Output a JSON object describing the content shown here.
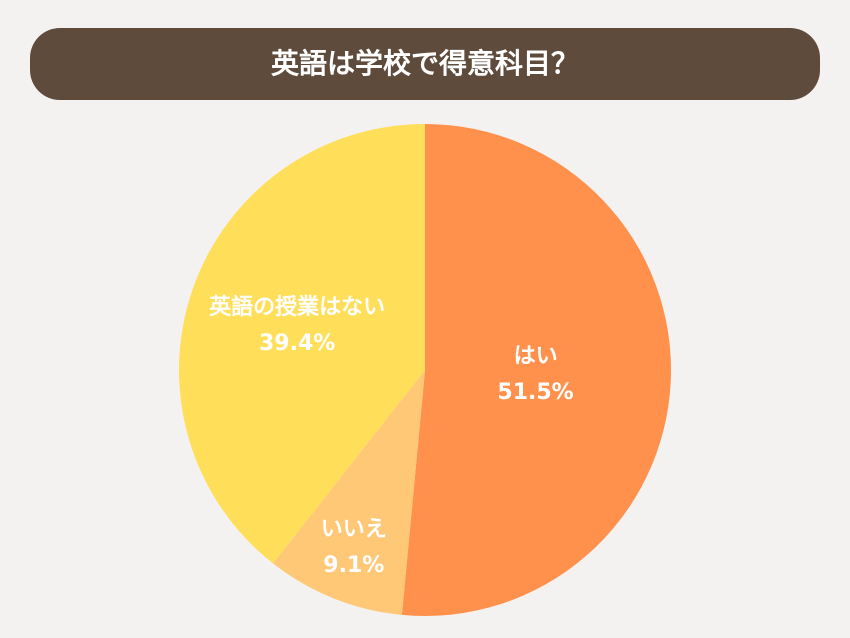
{
  "chart_data": {
    "type": "pie",
    "title": "英語は学校で得意科目？",
    "categories": [
      "はい",
      "いいえ",
      "英語の授業はない"
    ],
    "values": [
      51.5,
      9.1,
      39.4
    ],
    "value_labels": [
      "51.5%",
      "9.1%",
      "39.4%"
    ],
    "colors": [
      "#FF914D",
      "#FFC876",
      "#FFDE59"
    ]
  }
}
